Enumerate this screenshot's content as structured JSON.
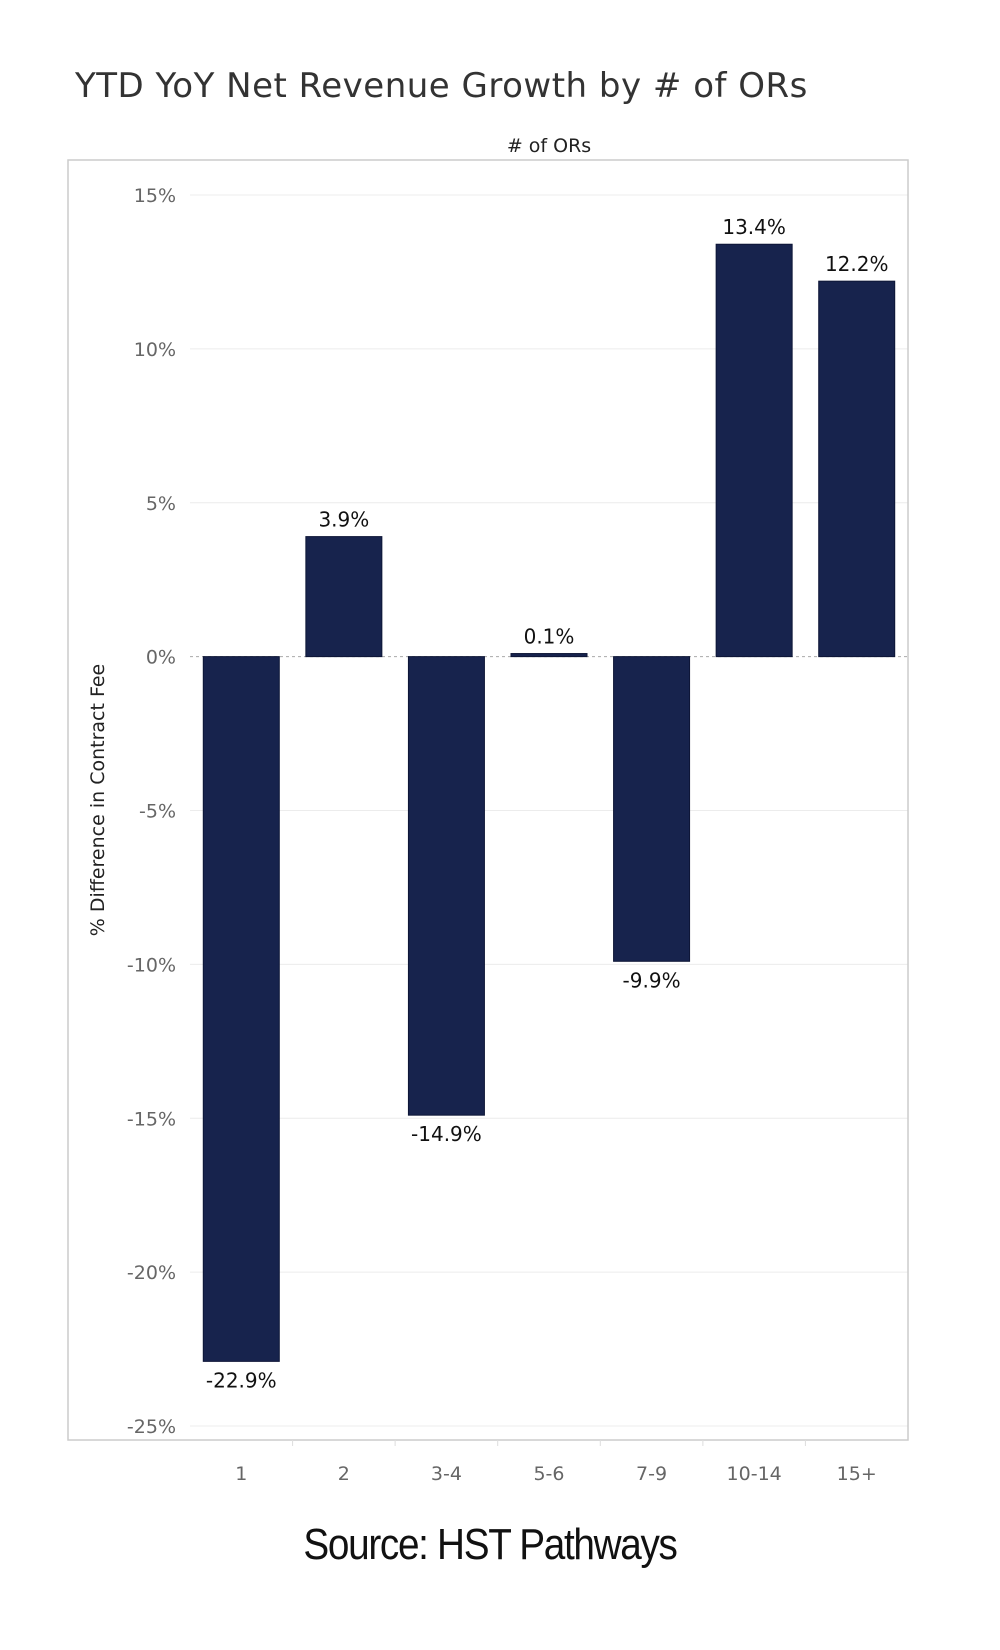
{
  "page": {
    "title": "YTD YoY Net Revenue Growth by # of ORs",
    "source": "Source: HST Pathways"
  },
  "chart_data": {
    "type": "bar",
    "title": "YTD YoY Net Revenue Growth by # of ORs",
    "xlabel": "# of ORs",
    "ylabel": "% Difference in Contract Fee",
    "categories": [
      "1",
      "2",
      "3-4",
      "5-6",
      "7-9",
      "10-14",
      "15+"
    ],
    "values": [
      -22.9,
      3.9,
      -14.9,
      0.1,
      -9.9,
      13.4,
      12.2
    ],
    "data_labels": [
      "-22.9%",
      "3.9%",
      "-14.9%",
      "0.1%",
      "-9.9%",
      "13.4%",
      "12.2%"
    ],
    "ylim": [
      -25,
      15
    ],
    "yticks": [
      15,
      10,
      5,
      0,
      -5,
      -10,
      -15,
      -20,
      -25
    ],
    "ytick_labels": [
      "15%",
      "10%",
      "5%",
      "0%",
      "-5%",
      "-10%",
      "-15%",
      "-20%",
      "-25%"
    ],
    "bar_color": "#17234d",
    "grid": true,
    "legend": "none"
  }
}
